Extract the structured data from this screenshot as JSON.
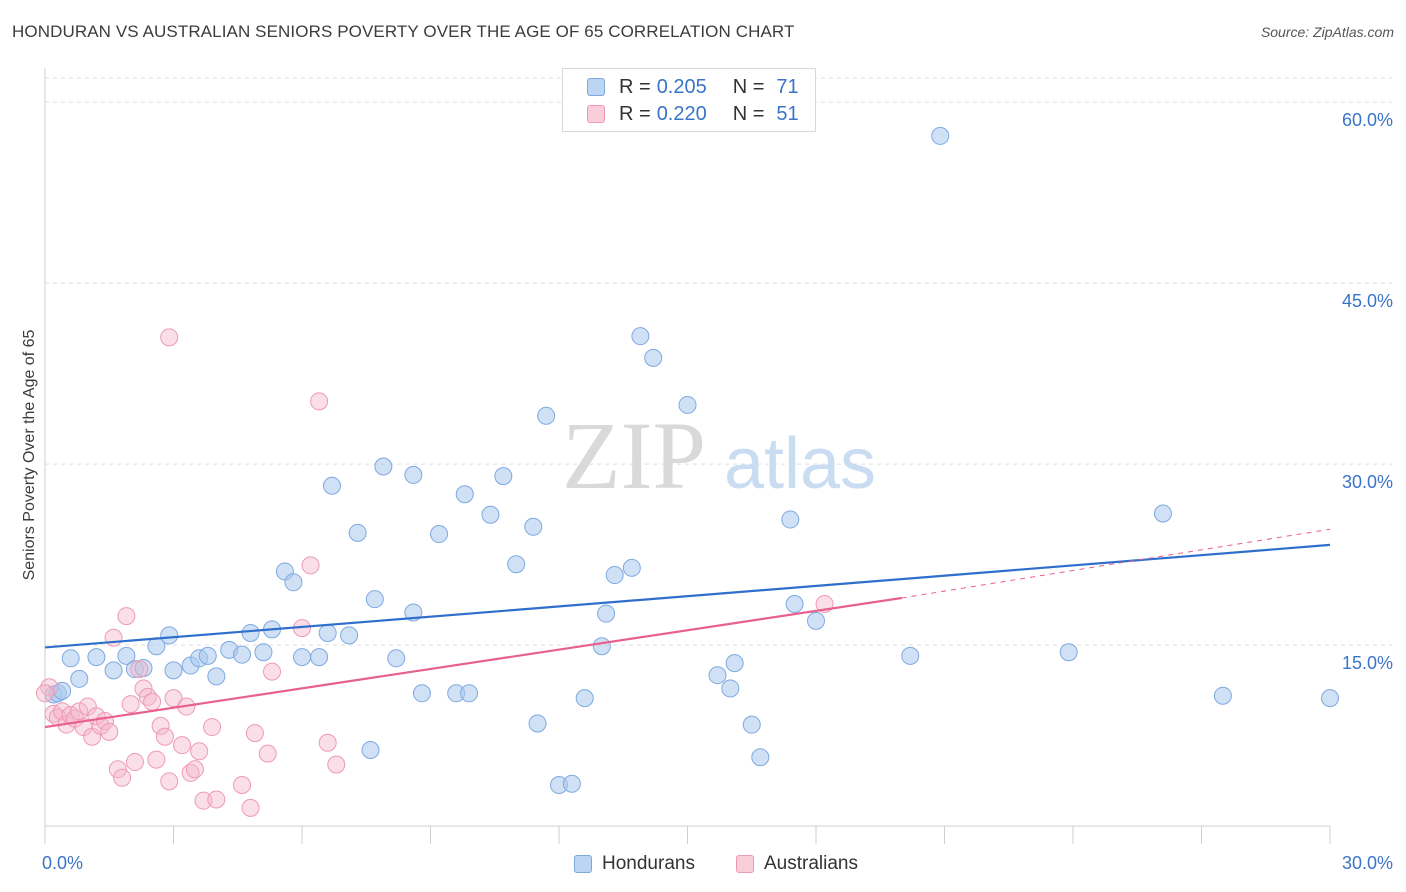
{
  "header": {
    "title": "HONDURAN VS AUSTRALIAN SENIORS POVERTY OVER THE AGE OF 65 CORRELATION CHART",
    "source": "Source: ZipAtlas.com"
  },
  "stats": [
    {
      "r_label": "R =",
      "r_value": "0.205",
      "n_label": "N =",
      "n_value": "71",
      "color": "#a9c8ee"
    },
    {
      "r_label": "R =",
      "r_value": "0.220",
      "n_label": "N =",
      "n_value": "51",
      "color": "#f5b8cb"
    }
  ],
  "legend": {
    "hondurans": "Hondurans",
    "australians": "Australians"
  },
  "watermark": {
    "zip": "ZIP",
    "atlas": "atlas"
  },
  "chart_data": {
    "type": "scatter",
    "title": "HONDURAN VS AUSTRALIAN SENIORS POVERTY OVER THE AGE OF 65 CORRELATION CHART",
    "xlabel": "",
    "ylabel": "Seniors Poverty Over the Age of 65",
    "xlim": [
      0,
      30
    ],
    "ylim": [
      0,
      62
    ],
    "x_tick_labels": [
      "0.0%",
      "30.0%"
    ],
    "y_ticks": [
      15,
      30,
      45,
      60
    ],
    "y_tick_labels": [
      "15.0%",
      "30.0%",
      "45.0%",
      "60.0%"
    ],
    "grid": true,
    "legend_position": "bottom-center",
    "colors": {
      "hondurans": "#a9c8ee",
      "hondurans_line": "#2f6fcc",
      "australians": "#f5b8cb",
      "australians_line": "#e8608c",
      "axis_text": "#3a74c8"
    },
    "series": [
      {
        "name": "Hondurans",
        "trend": {
          "x": [
            0,
            30
          ],
          "y": [
            14.8,
            23.3
          ]
        },
        "points": [
          [
            0.2,
            10.9
          ],
          [
            0.3,
            11.0
          ],
          [
            0.6,
            13.9
          ],
          [
            0.8,
            12.2
          ],
          [
            1.2,
            14.0
          ],
          [
            1.6,
            12.9
          ],
          [
            1.9,
            14.1
          ],
          [
            2.1,
            13.0
          ],
          [
            2.3,
            13.1
          ],
          [
            2.6,
            14.9
          ],
          [
            2.9,
            15.8
          ],
          [
            3.0,
            12.9
          ],
          [
            3.4,
            13.3
          ],
          [
            3.6,
            13.9
          ],
          [
            3.8,
            14.1
          ],
          [
            4.0,
            12.4
          ],
          [
            4.3,
            14.6
          ],
          [
            4.6,
            14.2
          ],
          [
            4.8,
            16.0
          ],
          [
            5.1,
            14.4
          ],
          [
            5.3,
            16.3
          ],
          [
            5.6,
            21.1
          ],
          [
            5.8,
            20.2
          ],
          [
            6.0,
            14.0
          ],
          [
            6.4,
            14.0
          ],
          [
            6.6,
            16.0
          ],
          [
            6.7,
            28.2
          ],
          [
            7.1,
            15.8
          ],
          [
            7.3,
            24.3
          ],
          [
            7.6,
            6.3
          ],
          [
            7.7,
            18.8
          ],
          [
            7.9,
            29.8
          ],
          [
            8.2,
            13.9
          ],
          [
            8.6,
            29.1
          ],
          [
            8.6,
            17.7
          ],
          [
            8.8,
            11.0
          ],
          [
            9.2,
            24.2
          ],
          [
            9.6,
            11.0
          ],
          [
            9.8,
            27.5
          ],
          [
            9.9,
            11.0
          ],
          [
            10.4,
            25.8
          ],
          [
            10.7,
            29.0
          ],
          [
            11.0,
            21.7
          ],
          [
            11.4,
            24.8
          ],
          [
            11.5,
            8.5
          ],
          [
            11.7,
            34.0
          ],
          [
            12.0,
            3.4
          ],
          [
            12.3,
            3.5
          ],
          [
            12.6,
            10.6
          ],
          [
            13.0,
            14.9
          ],
          [
            13.1,
            17.6
          ],
          [
            13.3,
            20.8
          ],
          [
            13.7,
            21.4
          ],
          [
            13.9,
            40.6
          ],
          [
            14.2,
            38.8
          ],
          [
            15.0,
            34.9
          ],
          [
            15.7,
            12.5
          ],
          [
            16.0,
            11.4
          ],
          [
            16.1,
            13.5
          ],
          [
            16.5,
            8.4
          ],
          [
            16.7,
            5.7
          ],
          [
            17.5,
            18.4
          ],
          [
            17.4,
            25.4
          ],
          [
            18.0,
            17.0
          ],
          [
            20.2,
            14.1
          ],
          [
            20.9,
            57.2
          ],
          [
            23.9,
            14.4
          ],
          [
            26.1,
            25.9
          ],
          [
            27.5,
            10.8
          ],
          [
            30.0,
            10.6
          ],
          [
            0.4,
            11.2
          ]
        ]
      },
      {
        "name": "Australians",
        "trend": {
          "x": [
            0,
            20
          ],
          "y": [
            8.2,
            18.9
          ]
        },
        "trend_extension": {
          "x": [
            20,
            30
          ],
          "y": [
            18.9,
            24.6
          ]
        },
        "points": [
          [
            0.1,
            11.5
          ],
          [
            0.2,
            9.3
          ],
          [
            0.3,
            9.0
          ],
          [
            0.4,
            9.5
          ],
          [
            0.5,
            8.4
          ],
          [
            0.6,
            9.2
          ],
          [
            0.7,
            8.9
          ],
          [
            0.8,
            9.5
          ],
          [
            0.9,
            8.2
          ],
          [
            1.0,
            9.9
          ],
          [
            1.1,
            7.4
          ],
          [
            1.2,
            9.1
          ],
          [
            1.3,
            8.3
          ],
          [
            1.4,
            8.7
          ],
          [
            1.5,
            7.8
          ],
          [
            1.6,
            15.6
          ],
          [
            1.7,
            4.7
          ],
          [
            1.8,
            4.0
          ],
          [
            1.9,
            17.4
          ],
          [
            2.0,
            10.1
          ],
          [
            2.1,
            5.3
          ],
          [
            2.2,
            13.0
          ],
          [
            2.3,
            11.4
          ],
          [
            2.4,
            10.7
          ],
          [
            2.5,
            10.3
          ],
          [
            2.6,
            5.5
          ],
          [
            2.7,
            8.3
          ],
          [
            2.8,
            7.4
          ],
          [
            2.9,
            3.7
          ],
          [
            3.0,
            10.6
          ],
          [
            3.2,
            6.7
          ],
          [
            3.3,
            9.9
          ],
          [
            3.4,
            4.4
          ],
          [
            3.5,
            4.7
          ],
          [
            3.6,
            6.2
          ],
          [
            3.7,
            2.1
          ],
          [
            3.9,
            8.2
          ],
          [
            4.0,
            2.2
          ],
          [
            4.6,
            3.4
          ],
          [
            4.8,
            1.5
          ],
          [
            4.9,
            7.7
          ],
          [
            5.2,
            6.0
          ],
          [
            5.3,
            12.8
          ],
          [
            6.0,
            16.4
          ],
          [
            6.2,
            21.6
          ],
          [
            6.4,
            35.2
          ],
          [
            6.6,
            6.9
          ],
          [
            6.8,
            5.1
          ],
          [
            2.9,
            40.5
          ],
          [
            18.2,
            18.4
          ],
          [
            0.0,
            11.0
          ]
        ]
      }
    ]
  }
}
